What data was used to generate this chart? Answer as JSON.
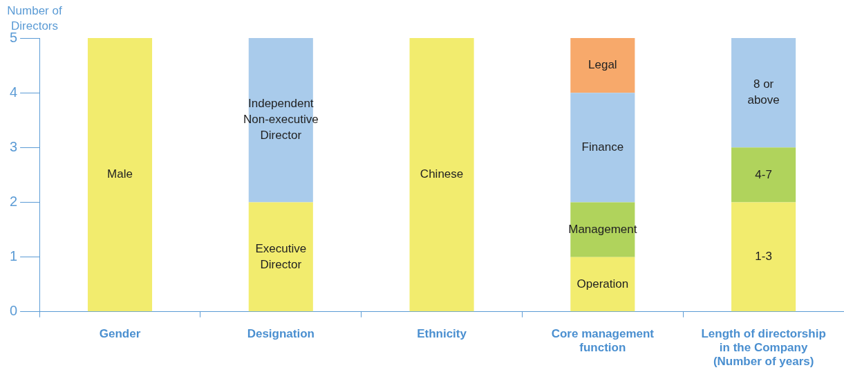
{
  "chart_data": {
    "type": "bar",
    "stacked": true,
    "ylabel": "Number of\nDirectors",
    "categories": [
      "Gender",
      "Designation",
      "Ethnicity",
      "Core management\nfunction",
      "Length of directorship\nin the Company\n(Number of years)"
    ],
    "series": [
      {
        "name": "Male",
        "color": "#f2ec6e",
        "values": [
          5,
          null,
          null,
          null,
          null
        ]
      },
      {
        "name": "Executive\nDirector",
        "color": "#f2ec6e",
        "values": [
          null,
          2,
          null,
          null,
          null
        ]
      },
      {
        "name": "Independent\nNon-executive\nDirector",
        "color": "#a9cbeb",
        "values": [
          null,
          3,
          null,
          null,
          null
        ]
      },
      {
        "name": "Chinese",
        "color": "#f2ec6e",
        "values": [
          null,
          null,
          5,
          null,
          null
        ]
      },
      {
        "name": "Operation",
        "color": "#f2ec6e",
        "values": [
          null,
          null,
          null,
          1,
          null
        ]
      },
      {
        "name": "Management",
        "color": "#b0d35c",
        "values": [
          null,
          null,
          null,
          1,
          null
        ]
      },
      {
        "name": "Finance",
        "color": "#a9cbeb",
        "values": [
          null,
          null,
          null,
          2,
          null
        ]
      },
      {
        "name": "Legal",
        "color": "#f7a96b",
        "values": [
          null,
          null,
          null,
          1,
          null
        ]
      },
      {
        "name": "1-3",
        "color": "#f2ec6e",
        "values": [
          null,
          null,
          null,
          null,
          2
        ]
      },
      {
        "name": "4-7",
        "color": "#b0d35c",
        "values": [
          null,
          null,
          null,
          null,
          1
        ]
      },
      {
        "name": "8 or\nabove",
        "color": "#a9cbeb",
        "values": [
          null,
          null,
          null,
          null,
          2
        ]
      }
    ],
    "ylim": [
      0,
      5
    ],
    "yticks": [
      0,
      1,
      2,
      3,
      4,
      5
    ],
    "grid": false,
    "legend": false
  }
}
